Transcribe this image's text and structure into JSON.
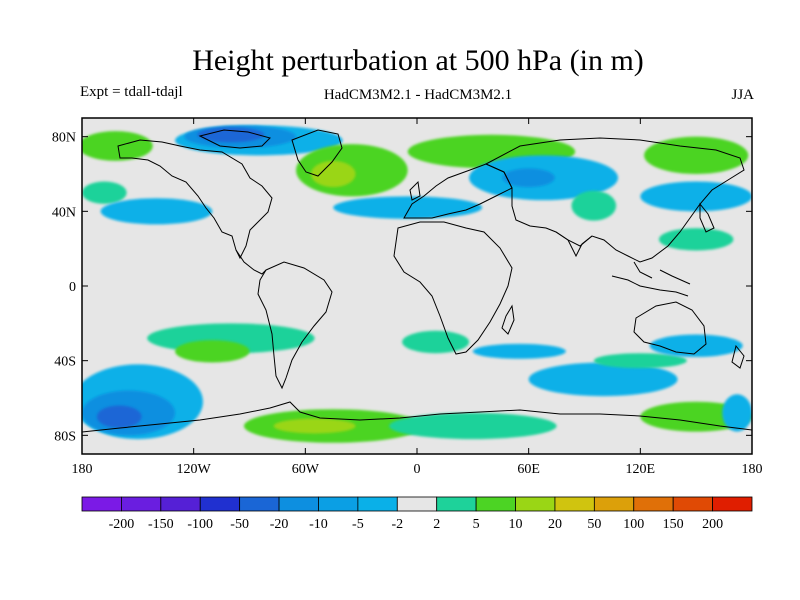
{
  "header": {
    "title": "Height perturbation at 500 hPa (in m)",
    "left_label": "Expt = tdall-tdajl",
    "center_label": "HadCM3M2.1 - HadCM3M2.1",
    "right_label": "JJA"
  },
  "map": {
    "projection": "cylindrical equidistant",
    "lon_range": [
      -180,
      180
    ],
    "lat_range": [
      -90,
      90
    ],
    "background_color": "#e6e6e6",
    "x_ticks": [
      {
        "value": -180,
        "label": "180"
      },
      {
        "value": -120,
        "label": "120W"
      },
      {
        "value": -60,
        "label": "60W"
      },
      {
        "value": 0,
        "label": "0"
      },
      {
        "value": 60,
        "label": "60E"
      },
      {
        "value": 120,
        "label": "120E"
      },
      {
        "value": 180,
        "label": "180"
      }
    ],
    "y_ticks": [
      {
        "value": 80,
        "label": "80N"
      },
      {
        "value": 40,
        "label": "40N"
      },
      {
        "value": 0,
        "label": "0"
      },
      {
        "value": -40,
        "label": "40S"
      },
      {
        "value": -80,
        "label": "80S"
      }
    ],
    "contour_fields": [
      {
        "level": "-5",
        "color": "#0ab0e8",
        "lon": -85,
        "lat": 78,
        "rlon": 45,
        "rlat": 8
      },
      {
        "level": "-10",
        "color": "#0d8fe0",
        "lon": -95,
        "lat": 80,
        "rlon": 30,
        "rlat": 6
      },
      {
        "level": "-20",
        "color": "#1a66d6",
        "lon": -100,
        "lat": 81,
        "rlon": 18,
        "rlat": 4
      },
      {
        "level": "5",
        "color": "#4cd424",
        "lon": -35,
        "lat": 62,
        "rlon": 30,
        "rlat": 14
      },
      {
        "level": "10",
        "color": "#9ad615",
        "lon": -45,
        "lat": 60,
        "rlon": 12,
        "rlat": 7
      },
      {
        "level": "5",
        "color": "#4cd424",
        "lon": -162,
        "lat": 75,
        "rlon": 20,
        "rlat": 8
      },
      {
        "level": "2",
        "color": "#1ed29a",
        "lon": -168,
        "lat": 50,
        "rlon": 12,
        "rlat": 6
      },
      {
        "level": "-5",
        "color": "#0ab0e8",
        "lon": -140,
        "lat": 40,
        "rlon": 30,
        "rlat": 7
      },
      {
        "level": "-5",
        "color": "#0ab0e8",
        "lon": -5,
        "lat": 42,
        "rlon": 40,
        "rlat": 6
      },
      {
        "level": "5",
        "color": "#4cd424",
        "lon": 40,
        "lat": 72,
        "rlon": 45,
        "rlat": 9
      },
      {
        "level": "-5",
        "color": "#0ab0e8",
        "lon": 68,
        "lat": 58,
        "rlon": 40,
        "rlat": 12
      },
      {
        "level": "-10",
        "color": "#0d8fe0",
        "lon": 60,
        "lat": 58,
        "rlon": 14,
        "rlat": 5
      },
      {
        "level": "5",
        "color": "#4cd424",
        "lon": 150,
        "lat": 70,
        "rlon": 28,
        "rlat": 10
      },
      {
        "level": "-5",
        "color": "#0ab0e8",
        "lon": 150,
        "lat": 48,
        "rlon": 30,
        "rlat": 8
      },
      {
        "level": "2",
        "color": "#1ed29a",
        "lon": 95,
        "lat": 43,
        "rlon": 12,
        "rlat": 8
      },
      {
        "level": "2",
        "color": "#1ed29a",
        "lon": 150,
        "lat": 25,
        "rlon": 20,
        "rlat": 6
      },
      {
        "level": "2",
        "color": "#1ed29a",
        "lon": -100,
        "lat": -28,
        "rlon": 45,
        "rlat": 8
      },
      {
        "level": "5",
        "color": "#4cd424",
        "lon": -110,
        "lat": -35,
        "rlon": 20,
        "rlat": 6
      },
      {
        "level": "-5",
        "color": "#0ab0e8",
        "lon": -150,
        "lat": -62,
        "rlon": 35,
        "rlat": 20
      },
      {
        "level": "-10",
        "color": "#0d8fe0",
        "lon": -155,
        "lat": -68,
        "rlon": 25,
        "rlat": 12
      },
      {
        "level": "-20",
        "color": "#1a66d6",
        "lon": -160,
        "lat": -70,
        "rlon": 12,
        "rlat": 6
      },
      {
        "level": "5",
        "color": "#4cd424",
        "lon": -45,
        "lat": -75,
        "rlon": 48,
        "rlat": 9
      },
      {
        "level": "10",
        "color": "#9ad615",
        "lon": -55,
        "lat": -75,
        "rlon": 22,
        "rlat": 4
      },
      {
        "level": "-5",
        "color": "#0ab0e8",
        "lon": 55,
        "lat": -35,
        "rlon": 25,
        "rlat": 4
      },
      {
        "level": "2",
        "color": "#1ed29a",
        "lon": 10,
        "lat": -30,
        "rlon": 18,
        "rlat": 6
      },
      {
        "level": "-5",
        "color": "#0ab0e8",
        "lon": 100,
        "lat": -50,
        "rlon": 40,
        "rlat": 9
      },
      {
        "level": "2",
        "color": "#1ed29a",
        "lon": 120,
        "lat": -40,
        "rlon": 25,
        "rlat": 4
      },
      {
        "level": "-5",
        "color": "#0ab0e8",
        "lon": 150,
        "lat": -32,
        "rlon": 25,
        "rlat": 6
      },
      {
        "level": "2",
        "color": "#1ed29a",
        "lon": 30,
        "lat": -75,
        "rlon": 45,
        "rlat": 7
      },
      {
        "level": "5",
        "color": "#4cd424",
        "lon": 150,
        "lat": -70,
        "rlon": 30,
        "rlat": 8
      },
      {
        "level": "-5",
        "color": "#0ab0e8",
        "lon": 172,
        "lat": -68,
        "rlon": 8,
        "rlat": 10
      }
    ]
  },
  "colorbar": {
    "colors": [
      "#7b1ae6",
      "#6a1ee0",
      "#5520d6",
      "#2030d0",
      "#1a66d6",
      "#0d8fe0",
      "#0b9fe4",
      "#0ab0e8",
      "#e6e6e6",
      "#1ed29a",
      "#4cd424",
      "#9ad615",
      "#d0c40f",
      "#dca00a",
      "#e07008",
      "#e04a05",
      "#e01e00"
    ],
    "labels": [
      "-200",
      "-150",
      "-100",
      "-50",
      "-20",
      "-10",
      "-5",
      "-2",
      "2",
      "5",
      "10",
      "20",
      "50",
      "100",
      "150",
      "200"
    ]
  }
}
